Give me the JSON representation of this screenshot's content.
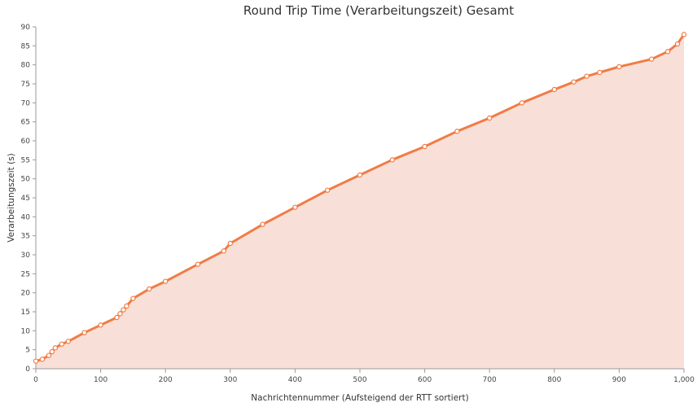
{
  "chart_data": {
    "type": "area",
    "title": "Round Trip Time (Verarbeitungszeit) Gesamt",
    "xlabel": "Nachrichtennummer (Aufsteigend der RTT sortiert)",
    "ylabel": "Verarbeitungszeit (s)",
    "xlim": [
      0,
      1000
    ],
    "ylim": [
      0,
      90
    ],
    "x_ticks": [
      0,
      100,
      200,
      300,
      400,
      500,
      600,
      700,
      800,
      900,
      1000
    ],
    "x_tick_labels": [
      "0",
      "100",
      "200",
      "300",
      "400",
      "500",
      "600",
      "700",
      "800",
      "900",
      "1,000"
    ],
    "y_ticks": [
      0,
      5,
      10,
      15,
      20,
      25,
      30,
      35,
      40,
      45,
      50,
      55,
      60,
      65,
      70,
      75,
      80,
      85,
      90
    ],
    "y_tick_labels": [
      "0",
      "5",
      "10",
      "15",
      "20",
      "25",
      "30",
      "35",
      "40",
      "45",
      "50",
      "55",
      "60",
      "65",
      "70",
      "75",
      "80",
      "85",
      "90"
    ],
    "grid": false,
    "legend": "none",
    "series": [
      {
        "x": [
          0,
          10,
          20,
          25,
          30,
          40,
          50,
          75,
          100,
          125,
          130,
          135,
          140,
          150,
          175,
          200,
          250,
          290,
          300,
          350,
          400,
          450,
          500,
          550,
          600,
          650,
          700,
          750,
          800,
          830,
          850,
          870,
          900,
          950,
          975,
          990,
          1000
        ],
        "y": [
          2,
          2.5,
          3.5,
          4.5,
          5.5,
          6.5,
          7.2,
          9.5,
          11.5,
          13.5,
          14.5,
          15.5,
          16.5,
          18.5,
          21,
          23,
          27.5,
          31,
          33,
          38,
          42.5,
          47,
          51,
          55,
          58.5,
          62.5,
          66,
          70,
          73.5,
          75.5,
          77,
          78,
          79.5,
          81.5,
          83.5,
          85.5,
          88
        ]
      }
    ],
    "colors": {
      "line": "#f07c45",
      "fill": "#f8e0d8"
    }
  }
}
